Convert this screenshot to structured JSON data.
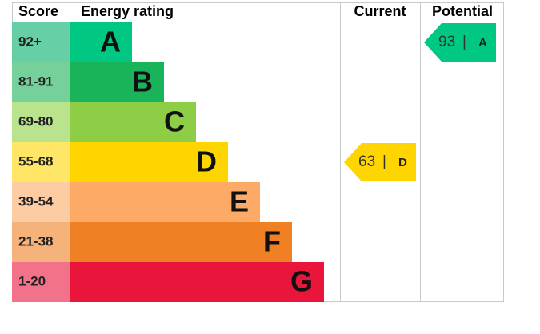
{
  "headers": [
    "Score",
    "Energy rating",
    "Current",
    "Potential"
  ],
  "bands": [
    {
      "score": "92+",
      "letter": "A",
      "color": "#00c781",
      "light": "#66cfa6"
    },
    {
      "score": "81-91",
      "letter": "B",
      "color": "#19b459",
      "light": "#75d09a"
    },
    {
      "score": "69-80",
      "letter": "C",
      "color": "#8dce46",
      "light": "#bae38e"
    },
    {
      "score": "55-68",
      "letter": "D",
      "color": "#ffd500",
      "light": "#ffe666"
    },
    {
      "score": "39-54",
      "letter": "E",
      "color": "#fcaa65",
      "light": "#fdcca3"
    },
    {
      "score": "21-38",
      "letter": "F",
      "color": "#ef8023",
      "light": "#f5b37b"
    },
    {
      "score": "1-20",
      "letter": "G",
      "color": "#e9153b",
      "light": "#f27389"
    }
  ],
  "current": {
    "value": 63,
    "letter": "D",
    "band": 3
  },
  "potential": {
    "value": 93,
    "letter": "A",
    "band": 0
  }
}
